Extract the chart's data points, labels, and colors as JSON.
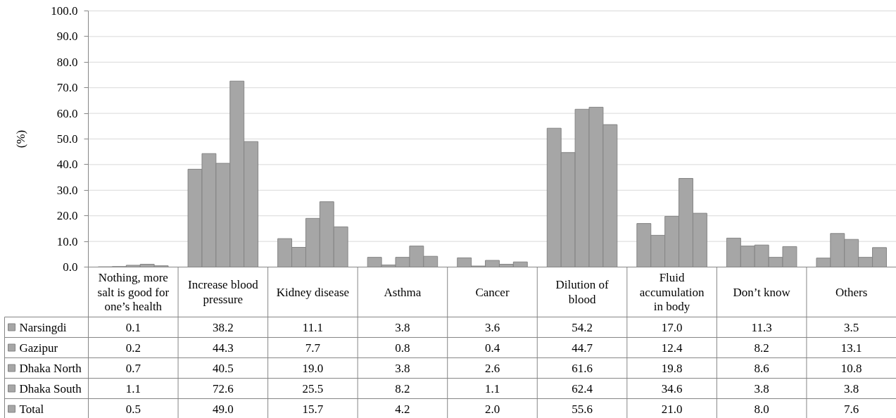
{
  "chart_data": {
    "type": "bar",
    "ylabel": "(%)",
    "categories": [
      "Nothing, more salt is good for one’s health",
      "Increase blood pressure",
      "Kidney disease",
      "Asthma",
      "Cancer",
      "Dilution of blood",
      "Fluid accumulation in body",
      "Don’t know",
      "Others"
    ],
    "series": [
      {
        "name": "Narsingdi",
        "color": "#a6a6a6",
        "values": [
          0.1,
          38.2,
          11.1,
          3.8,
          3.6,
          54.2,
          17.0,
          11.3,
          3.5
        ],
        "value_labels": [
          "0.1",
          "38.2",
          "11.1",
          "3.8",
          "3.6",
          "54.2",
          "17.0",
          "11.3",
          "3.5"
        ]
      },
      {
        "name": "Gazipur",
        "color": "#a6a6a6",
        "values": [
          0.2,
          44.3,
          7.7,
          0.8,
          0.4,
          44.7,
          12.4,
          8.2,
          13.1
        ],
        "value_labels": [
          "0.2",
          "44.3",
          "7.7",
          "0.8",
          "0.4",
          "44.7",
          "12.4",
          "8.2",
          "13.1"
        ]
      },
      {
        "name": "Dhaka North",
        "color": "#a6a6a6",
        "values": [
          0.7,
          40.5,
          19.0,
          3.8,
          2.6,
          61.6,
          19.8,
          8.6,
          10.8
        ],
        "value_labels": [
          "0.7",
          "40.5",
          "19.0",
          "3.8",
          "2.6",
          "61.6",
          "19.8",
          "8.6",
          "10.8"
        ]
      },
      {
        "name": "Dhaka South",
        "color": "#a6a6a6",
        "values": [
          1.1,
          72.6,
          25.5,
          8.2,
          1.1,
          62.4,
          34.6,
          3.8,
          3.8
        ],
        "value_labels": [
          "1.1",
          "72.6",
          "25.5",
          "8.2",
          "1.1",
          "62.4",
          "34.6",
          "3.8",
          "3.8"
        ]
      },
      {
        "name": "Total",
        "color": "#a6a6a6",
        "values": [
          0.5,
          49.0,
          15.7,
          4.2,
          2.0,
          55.6,
          21.0,
          8.0,
          7.6
        ],
        "value_labels": [
          "0.5",
          "49.0",
          "15.7",
          "4.2",
          "2.0",
          "55.6",
          "21.0",
          "8.0",
          "7.6"
        ]
      }
    ],
    "ylim": [
      0,
      100
    ],
    "yticks": [
      {
        "value": 0,
        "label": "0.0"
      },
      {
        "value": 10,
        "label": "10.0"
      },
      {
        "value": 20,
        "label": "20.0"
      },
      {
        "value": 30,
        "label": "30.0"
      },
      {
        "value": 40,
        "label": "40.0"
      },
      {
        "value": 50,
        "label": "50.0"
      },
      {
        "value": 60,
        "label": "60.0"
      },
      {
        "value": 70,
        "label": "70.0"
      },
      {
        "value": 80,
        "label": "80.0"
      },
      {
        "value": 90,
        "label": "90.0"
      },
      {
        "value": 100,
        "label": "100.0"
      }
    ],
    "grid": "y",
    "legend": "bottom left"
  }
}
